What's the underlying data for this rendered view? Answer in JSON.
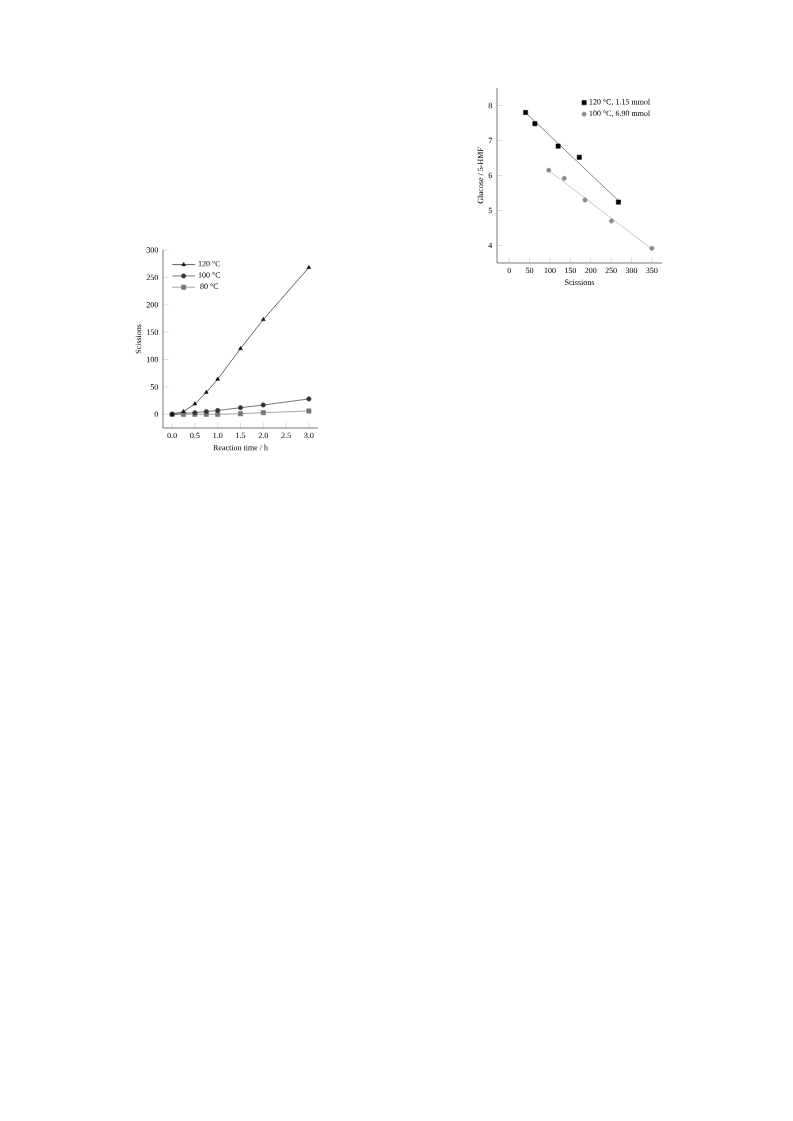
{
  "chart_data": [
    {
      "type": "line",
      "xlabel": "Reaction time / h",
      "ylabel": "Scissions",
      "x": [
        0,
        0.25,
        0.5,
        0.75,
        1,
        1.5,
        2,
        3
      ],
      "xlim": [
        -0.2,
        3.2
      ],
      "ylim": [
        -25,
        300
      ],
      "xticks": [
        {
          "value": 0,
          "label": "0.0"
        },
        0.5,
        {
          "value": 1,
          "label": "1.0"
        },
        1.5,
        {
          "value": 2,
          "label": "2.0"
        },
        2.5,
        {
          "value": 3,
          "label": "3.0"
        }
      ],
      "yticks": [
        0,
        50,
        100,
        150,
        200,
        250,
        300
      ],
      "legend": "top left",
      "series": [
        {
          "name": "120 °C",
          "color": "#111111",
          "marker": "triangle",
          "values": [
            0,
            5,
            19,
            40,
            64,
            120,
            173,
            268
          ]
        },
        {
          "name": "100 °C",
          "color": "#333333",
          "marker": "circle",
          "values": [
            0,
            null,
            3,
            5,
            7,
            12,
            17,
            28
          ]
        },
        {
          "name": "80 °C",
          "color": "#777777",
          "marker": "square",
          "values": [
            0,
            0,
            0,
            0,
            0,
            1,
            3,
            6
          ]
        }
      ]
    },
    {
      "type": "scatter",
      "xlabel": "Scissions",
      "ylabel": "Glucose / 5-HMF",
      "xlim": [
        -30,
        375
      ],
      "ylim": [
        3.5,
        8.5
      ],
      "xticks": [
        0,
        50,
        100,
        150,
        200,
        250,
        300,
        350
      ],
      "yticks": [
        4,
        5,
        6,
        7,
        8
      ],
      "legend": "top right",
      "series": [
        {
          "name": "120 °C, 1.15 mmol",
          "color": "#000000",
          "marker": "square",
          "x": [
            40,
            63,
            120,
            172,
            268
          ],
          "values": [
            7.8,
            7.48,
            6.84,
            6.52,
            5.24
          ]
        },
        {
          "name": "100 °C, 6.90 mmol",
          "color": "#8a8a8a",
          "marker": "circle",
          "x": [
            97,
            135,
            186,
            251,
            350
          ],
          "values": [
            6.15,
            5.92,
            5.3,
            4.7,
            3.92
          ]
        },
        {
          "type": "line",
          "color": "#444444",
          "marker": "none",
          "x": [
            40,
            268
          ],
          "values": [
            7.8,
            5.28
          ]
        },
        {
          "type": "line",
          "color": "#aaaaaa",
          "marker": "none",
          "x": [
            97,
            350
          ],
          "values": [
            6.14,
            3.9
          ]
        }
      ]
    }
  ]
}
